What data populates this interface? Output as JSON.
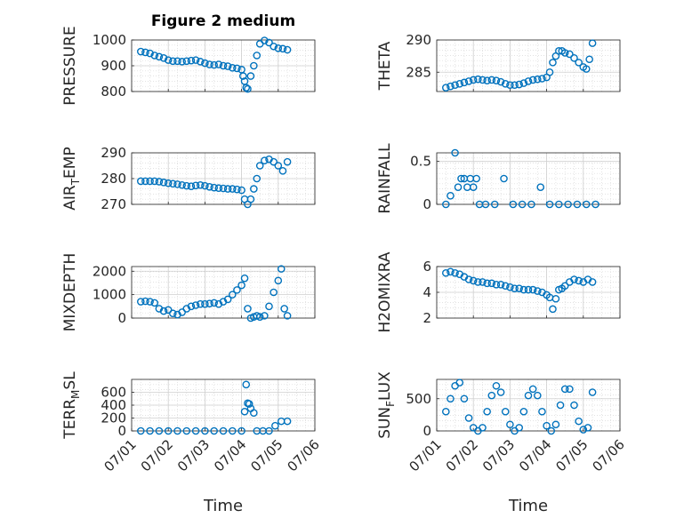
{
  "figure": {
    "title": "Figure 2 medium",
    "xlabel": "Time",
    "colors": {
      "marker": "#0072BD",
      "grid": "#d9d9d9",
      "axis": "#262626"
    }
  },
  "chart_data": [
    {
      "id": "pressure",
      "type": "scatter",
      "title": "Figure 2 medium",
      "ylabel": "PRESSURE",
      "xlim": [
        "07/01",
        "07/06"
      ],
      "ylim": [
        800,
        1000
      ],
      "yticks": [
        800,
        900,
        1000
      ],
      "xticks": [
        "07/01",
        "07/02",
        "07/03",
        "07/04",
        "07/05",
        "07/06"
      ],
      "x": [
        "07/01 06:00",
        "07/01 09:00",
        "07/01 12:00",
        "07/01 15:00",
        "07/01 18:00",
        "07/01 21:00",
        "07/02 00:00",
        "07/02 03:00",
        "07/02 06:00",
        "07/02 09:00",
        "07/02 12:00",
        "07/02 15:00",
        "07/02 18:00",
        "07/02 21:00",
        "07/03 00:00",
        "07/03 03:00",
        "07/03 06:00",
        "07/03 09:00",
        "07/03 12:00",
        "07/03 15:00",
        "07/03 18:00",
        "07/03 21:00",
        "07/04 00:00",
        "07/04 01:00",
        "07/04 02:00",
        "07/04 03:00",
        "07/04 04:00",
        "07/04 06:00",
        "07/04 08:00",
        "07/04 10:00",
        "07/04 12:00",
        "07/04 15:00",
        "07/04 18:00",
        "07/04 21:00",
        "07/05 00:00",
        "07/05 03:00",
        "07/05 06:00"
      ],
      "y": [
        955,
        952,
        948,
        940,
        935,
        930,
        922,
        918,
        918,
        916,
        918,
        920,
        922,
        916,
        910,
        905,
        903,
        905,
        900,
        898,
        892,
        890,
        885,
        860,
        840,
        815,
        810,
        860,
        900,
        940,
        985,
        998,
        990,
        975,
        968,
        966,
        962
      ]
    },
    {
      "id": "theta",
      "type": "scatter",
      "ylabel": "THETA",
      "xlim": [
        "07/01",
        "07/06"
      ],
      "ylim": [
        282,
        290
      ],
      "yticks": [
        285,
        290
      ],
      "xticks": [
        "07/01",
        "07/02",
        "07/03",
        "07/04",
        "07/05",
        "07/06"
      ],
      "x": [
        "07/01 06:00",
        "07/01 09:00",
        "07/01 12:00",
        "07/01 15:00",
        "07/01 18:00",
        "07/01 21:00",
        "07/02 00:00",
        "07/02 03:00",
        "07/02 06:00",
        "07/02 09:00",
        "07/02 12:00",
        "07/02 15:00",
        "07/02 18:00",
        "07/02 21:00",
        "07/03 00:00",
        "07/03 03:00",
        "07/03 06:00",
        "07/03 09:00",
        "07/03 12:00",
        "07/03 15:00",
        "07/03 18:00",
        "07/03 21:00",
        "07/04 00:00",
        "07/04 02:00",
        "07/04 04:00",
        "07/04 06:00",
        "07/04 08:00",
        "07/04 10:00",
        "07/04 12:00",
        "07/04 15:00",
        "07/04 18:00",
        "07/04 21:00",
        "07/05 00:00",
        "07/05 02:00",
        "07/05 04:00",
        "07/05 06:00"
      ],
      "y": [
        282.6,
        282.8,
        283.0,
        283.2,
        283.4,
        283.6,
        283.8,
        283.9,
        283.8,
        283.7,
        283.8,
        283.7,
        283.5,
        283.2,
        283.0,
        283.0,
        283.1,
        283.3,
        283.6,
        283.8,
        283.9,
        284.0,
        284.2,
        285.0,
        286.5,
        287.5,
        288.3,
        288.3,
        288.0,
        287.8,
        287.2,
        286.5,
        285.8,
        285.5,
        287.0,
        289.5
      ]
    },
    {
      "id": "air_temp",
      "type": "scatter",
      "ylabel": "AIR_TEMP",
      "ylabel_main": "AIR",
      "ylabel_sub": "T",
      "ylabel_tail": "EMP",
      "xlim": [
        "07/01",
        "07/06"
      ],
      "ylim": [
        270,
        290
      ],
      "yticks": [
        270,
        280,
        290
      ],
      "xticks": [
        "07/01",
        "07/02",
        "07/03",
        "07/04",
        "07/05",
        "07/06"
      ],
      "x": [
        "07/01 06:00",
        "07/01 09:00",
        "07/01 12:00",
        "07/01 15:00",
        "07/01 18:00",
        "07/01 21:00",
        "07/02 00:00",
        "07/02 03:00",
        "07/02 06:00",
        "07/02 09:00",
        "07/02 12:00",
        "07/02 15:00",
        "07/02 18:00",
        "07/02 21:00",
        "07/03 00:00",
        "07/03 03:00",
        "07/03 06:00",
        "07/03 09:00",
        "07/03 12:00",
        "07/03 15:00",
        "07/03 18:00",
        "07/03 21:00",
        "07/04 00:00",
        "07/04 02:00",
        "07/04 04:00",
        "07/04 06:00",
        "07/04 08:00",
        "07/04 10:00",
        "07/04 12:00",
        "07/04 15:00",
        "07/04 18:00",
        "07/04 21:00",
        "07/05 00:00",
        "07/05 03:00",
        "07/05 06:00"
      ],
      "y": [
        279,
        279,
        279,
        279,
        278.8,
        278.5,
        278.2,
        278,
        277.8,
        277.5,
        277.2,
        277,
        277.3,
        277.5,
        277.2,
        276.8,
        276.5,
        276.3,
        276.2,
        276.0,
        276.0,
        275.8,
        275.5,
        272,
        270,
        272,
        276,
        280,
        285,
        287,
        287.5,
        286.5,
        285,
        283,
        286.5
      ]
    },
    {
      "id": "rainfall",
      "type": "scatter",
      "ylabel": "RAINFALL",
      "xlim": [
        "07/01",
        "07/06"
      ],
      "ylim": [
        0,
        0.6
      ],
      "yticks": [
        0,
        0.5
      ],
      "xticks": [
        "07/01",
        "07/02",
        "07/03",
        "07/04",
        "07/05",
        "07/06"
      ],
      "x": [
        "07/01 06:00",
        "07/01 09:00",
        "07/01 12:00",
        "07/01 14:00",
        "07/01 16:00",
        "07/01 18:00",
        "07/01 20:00",
        "07/01 22:00",
        "07/02 00:00",
        "07/02 02:00",
        "07/02 04:00",
        "07/02 08:00",
        "07/02 14:00",
        "07/02 20:00",
        "07/03 02:00",
        "07/03 08:00",
        "07/03 14:00",
        "07/03 20:00",
        "07/04 02:00",
        "07/04 08:00",
        "07/04 14:00",
        "07/04 20:00",
        "07/05 02:00",
        "07/05 08:00"
      ],
      "y": [
        0,
        0.1,
        0.6,
        0.2,
        0.3,
        0.3,
        0.2,
        0.3,
        0.2,
        0.3,
        0,
        0,
        0,
        0.3,
        0,
        0,
        0,
        0.2,
        0,
        0,
        0,
        0,
        0,
        0
      ]
    },
    {
      "id": "mixdepth",
      "type": "scatter",
      "ylabel": "MIXDEPTH",
      "xlim": [
        "07/01",
        "07/06"
      ],
      "ylim": [
        0,
        2200
      ],
      "yticks": [
        0,
        1000,
        2000
      ],
      "xticks": [
        "07/01",
        "07/02",
        "07/03",
        "07/04",
        "07/05",
        "07/06"
      ],
      "x": [
        "07/01 06:00",
        "07/01 09:00",
        "07/01 12:00",
        "07/01 15:00",
        "07/01 18:00",
        "07/01 21:00",
        "07/02 00:00",
        "07/02 03:00",
        "07/02 06:00",
        "07/02 09:00",
        "07/02 12:00",
        "07/02 15:00",
        "07/02 18:00",
        "07/02 21:00",
        "07/03 00:00",
        "07/03 03:00",
        "07/03 06:00",
        "07/03 09:00",
        "07/03 12:00",
        "07/03 15:00",
        "07/03 18:00",
        "07/03 21:00",
        "07/04 00:00",
        "07/04 02:00",
        "07/04 04:00",
        "07/04 06:00",
        "07/04 08:00",
        "07/04 10:00",
        "07/04 12:00",
        "07/04 15:00",
        "07/04 18:00",
        "07/04 21:00",
        "07/05 00:00",
        "07/05 02:00",
        "07/05 04:00",
        "07/05 06:00"
      ],
      "y": [
        700,
        720,
        700,
        650,
        400,
        300,
        350,
        200,
        150,
        250,
        400,
        500,
        550,
        600,
        600,
        620,
        650,
        600,
        700,
        800,
        1000,
        1200,
        1400,
        1700,
        400,
        0,
        50,
        100,
        50,
        100,
        500,
        1100,
        1600,
        2100,
        400,
        100
      ]
    },
    {
      "id": "h2omixra",
      "type": "scatter",
      "ylabel": "H2OMIXRA",
      "xlim": [
        "07/01",
        "07/06"
      ],
      "ylim": [
        2,
        6
      ],
      "yticks": [
        2,
        4,
        6
      ],
      "xticks": [
        "07/01",
        "07/02",
        "07/03",
        "07/04",
        "07/05",
        "07/06"
      ],
      "x": [
        "07/01 06:00",
        "07/01 09:00",
        "07/01 12:00",
        "07/01 15:00",
        "07/01 18:00",
        "07/01 21:00",
        "07/02 00:00",
        "07/02 03:00",
        "07/02 06:00",
        "07/02 09:00",
        "07/02 12:00",
        "07/02 15:00",
        "07/02 18:00",
        "07/02 21:00",
        "07/03 00:00",
        "07/03 03:00",
        "07/03 06:00",
        "07/03 09:00",
        "07/03 12:00",
        "07/03 15:00",
        "07/03 18:00",
        "07/03 21:00",
        "07/04 00:00",
        "07/04 02:00",
        "07/04 04:00",
        "07/04 06:00",
        "07/04 08:00",
        "07/04 10:00",
        "07/04 12:00",
        "07/04 15:00",
        "07/04 18:00",
        "07/04 21:00",
        "07/05 00:00",
        "07/05 03:00",
        "07/05 06:00"
      ],
      "y": [
        5.5,
        5.6,
        5.5,
        5.4,
        5.2,
        5.0,
        4.9,
        4.8,
        4.8,
        4.7,
        4.7,
        4.6,
        4.6,
        4.5,
        4.4,
        4.3,
        4.3,
        4.2,
        4.2,
        4.2,
        4.1,
        4.0,
        3.8,
        3.6,
        2.7,
        3.5,
        4.2,
        4.3,
        4.5,
        4.8,
        5.0,
        4.9,
        4.8,
        5.0,
        4.8
      ]
    },
    {
      "id": "terr_msl",
      "type": "scatter",
      "ylabel": "TERR_MSL",
      "ylabel_main": "TERR",
      "ylabel_sub": "M",
      "ylabel_tail": "SL",
      "xlim": [
        "07/01",
        "07/06"
      ],
      "ylim": [
        0,
        800
      ],
      "yticks": [
        0,
        200,
        400,
        600
      ],
      "xticks": [
        "07/01",
        "07/02",
        "07/03",
        "07/04",
        "07/05",
        "07/06"
      ],
      "x": [
        "07/01 06:00",
        "07/01 12:00",
        "07/01 18:00",
        "07/02 00:00",
        "07/02 06:00",
        "07/02 12:00",
        "07/02 18:00",
        "07/03 00:00",
        "07/03 06:00",
        "07/03 12:00",
        "07/03 18:00",
        "07/04 00:00",
        "07/04 02:00",
        "07/04 03:00",
        "07/04 04:00",
        "07/04 05:00",
        "07/04 06:00",
        "07/04 08:00",
        "07/04 10:00",
        "07/04 14:00",
        "07/04 18:00",
        "07/04 22:00",
        "07/05 02:00",
        "07/05 06:00"
      ],
      "y": [
        0,
        0,
        0,
        0,
        0,
        0,
        0,
        0,
        0,
        0,
        0,
        0,
        300,
        720,
        430,
        420,
        350,
        280,
        0,
        0,
        0,
        80,
        150,
        150
      ]
    },
    {
      "id": "sun_flux",
      "type": "scatter",
      "ylabel": "SUN_FLUX",
      "ylabel_main": "SUN",
      "ylabel_sub": "F",
      "ylabel_tail": "LUX",
      "xlim": [
        "07/01",
        "07/06"
      ],
      "ylim": [
        0,
        800
      ],
      "yticks": [
        0,
        500
      ],
      "xticks": [
        "07/01",
        "07/02",
        "07/03",
        "07/04",
        "07/05",
        "07/06"
      ],
      "x": [
        "07/01 06:00",
        "07/01 09:00",
        "07/01 12:00",
        "07/01 15:00",
        "07/01 18:00",
        "07/01 21:00",
        "07/02 00:00",
        "07/02 03:00",
        "07/02 06:00",
        "07/02 09:00",
        "07/02 12:00",
        "07/02 15:00",
        "07/02 18:00",
        "07/02 21:00",
        "07/03 00:00",
        "07/03 03:00",
        "07/03 06:00",
        "07/03 09:00",
        "07/03 12:00",
        "07/03 15:00",
        "07/03 18:00",
        "07/03 21:00",
        "07/04 00:00",
        "07/04 03:00",
        "07/04 06:00",
        "07/04 09:00",
        "07/04 12:00",
        "07/04 15:00",
        "07/04 18:00",
        "07/04 21:00",
        "07/05 00:00",
        "07/05 03:00",
        "07/05 06:00"
      ],
      "y": [
        300,
        500,
        700,
        750,
        500,
        200,
        50,
        0,
        50,
        300,
        550,
        700,
        600,
        300,
        100,
        0,
        50,
        300,
        550,
        650,
        550,
        300,
        80,
        0,
        100,
        400,
        650,
        650,
        400,
        150,
        20,
        50,
        600
      ]
    }
  ]
}
